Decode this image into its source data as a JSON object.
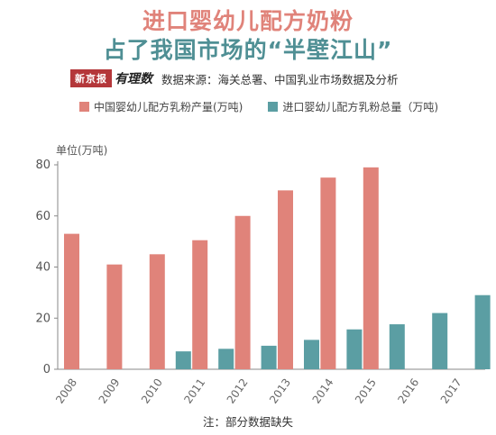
{
  "title_line1": "进口婴幼儿配方奶粉",
  "title_line2": "占了我国市场的“半壁江山”",
  "logo_text": "新京报",
  "logo_script": "有理数",
  "source": "数据来源：海关总署、中国乳业市场数据及分析",
  "note": "注：部分数据缺失",
  "colors": {
    "domestic": "#e0837a",
    "import": "#5b9ea3",
    "title1": "#e0837a",
    "title2": "#4f8f94"
  },
  "chart_data": {
    "type": "bar",
    "categories": [
      "2008",
      "2009",
      "2010",
      "2011",
      "2012",
      "2013",
      "2014",
      "2015",
      "2016",
      "2017"
    ],
    "series": [
      {
        "name": "中国婴幼儿配方乳粉产量(万吨)",
        "values": [
          53,
          41,
          45,
          50.5,
          60,
          70,
          75,
          79,
          null,
          null
        ]
      },
      {
        "name": "进口婴幼儿配方乳粉总量（万吨)",
        "values": [
          null,
          null,
          7,
          8,
          9.2,
          11.5,
          15.6,
          17.6,
          22,
          29
        ]
      }
    ],
    "ylabel": "单位(万吨)",
    "ylim": [
      0,
      80
    ],
    "yticks": [
      0,
      20,
      40,
      60,
      80
    ],
    "grid": false,
    "legend_position": "top"
  }
}
